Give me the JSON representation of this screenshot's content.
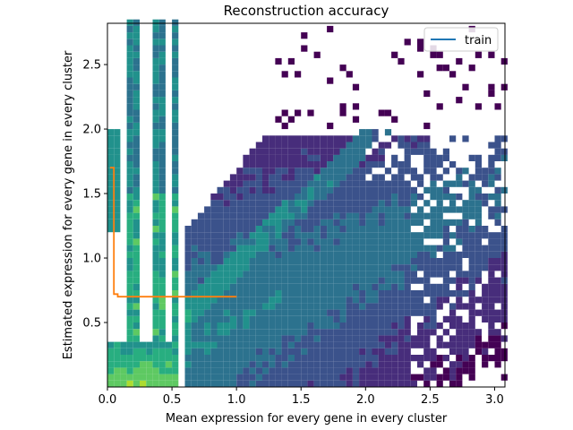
{
  "chart_data": {
    "type": "heatmap",
    "title": "Reconstruction accuracy",
    "xlabel": "Mean expression for every gene in every cluster",
    "ylabel": "Estimated expression for every gene in every cluster",
    "xlim": [
      0.0,
      3.08
    ],
    "ylim": [
      0.0,
      2.82
    ],
    "xticks": [
      0.0,
      0.5,
      1.0,
      1.5,
      2.0,
      2.5,
      3.0
    ],
    "xtick_labels": [
      "0.0",
      "0.5",
      "1.0",
      "1.5",
      "2.0",
      "2.5",
      "3.0"
    ],
    "yticks": [
      0.5,
      1.0,
      1.5,
      2.0,
      2.5
    ],
    "ytick_labels": [
      "0.5",
      "1.0",
      "1.5",
      "2.0",
      "2.5"
    ],
    "grid": false,
    "legend_position": "top-right",
    "colormap": "viridis",
    "series": [
      {
        "name": "train",
        "type": "line",
        "color": "#1f77b4",
        "x": [],
        "y": []
      },
      {
        "type": "line",
        "color": "#ff7f0e",
        "x": [
          0.02,
          0.05,
          0.05,
          0.08,
          0.08,
          1.0
        ],
        "y": [
          1.7,
          1.7,
          0.72,
          0.72,
          0.7,
          0.7
        ]
      }
    ]
  }
}
